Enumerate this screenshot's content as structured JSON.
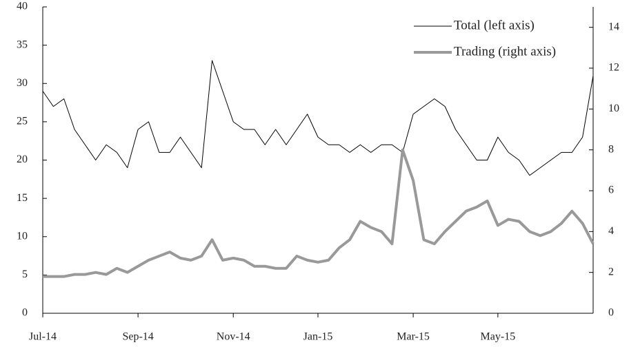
{
  "chart_data": {
    "type": "line",
    "categories": [
      "Jul-14",
      null,
      null,
      null,
      null,
      null,
      null,
      null,
      null,
      "Sep-14",
      null,
      null,
      null,
      null,
      null,
      null,
      null,
      null,
      "Nov-14",
      null,
      null,
      null,
      null,
      null,
      null,
      null,
      "Jan-15",
      null,
      null,
      null,
      null,
      null,
      null,
      null,
      null,
      "Mar-15",
      null,
      null,
      null,
      null,
      null,
      null,
      null,
      "May-15",
      null,
      null,
      null,
      null,
      null,
      null,
      null,
      null,
      null
    ],
    "series": [
      {
        "name": "Total (left axis)",
        "color": "#000000",
        "axis": "y",
        "values": [
          29,
          27,
          28,
          24,
          22,
          20,
          22,
          21,
          19,
          24,
          25,
          21,
          21,
          23,
          21,
          19,
          33,
          29,
          25,
          24,
          24,
          22,
          24,
          22,
          24,
          26,
          23,
          22,
          22,
          21,
          22,
          21,
          22,
          22,
          21,
          26,
          27,
          28,
          27,
          24,
          22,
          20,
          20,
          23,
          21,
          20,
          18,
          19,
          20,
          21,
          21,
          23,
          31
        ]
      },
      {
        "name": "Trading (right axis)",
        "color": "#999999",
        "axis": "y2",
        "values": [
          1.8,
          1.8,
          1.8,
          1.9,
          1.9,
          2.0,
          1.9,
          2.2,
          2.0,
          2.3,
          2.6,
          2.8,
          3.0,
          2.7,
          2.6,
          2.8,
          3.6,
          2.6,
          2.7,
          2.6,
          2.3,
          2.3,
          2.2,
          2.2,
          2.8,
          2.6,
          2.5,
          2.6,
          3.2,
          3.6,
          4.5,
          4.2,
          4.0,
          3.4,
          8.0,
          6.5,
          3.6,
          3.4,
          4.0,
          4.5,
          5.0,
          5.2,
          5.5,
          4.3,
          4.6,
          4.5,
          4.0,
          3.8,
          4.0,
          4.4,
          5.0,
          4.4,
          3.4
        ]
      }
    ],
    "ylim": [
      0,
      40
    ],
    "yticks": [
      0,
      5,
      10,
      15,
      20,
      25,
      30,
      35,
      40
    ],
    "y2lim": [
      0,
      15
    ],
    "y2ticks": [
      0,
      2,
      4,
      6,
      8,
      10,
      12,
      14
    ],
    "legend": "upper right"
  }
}
